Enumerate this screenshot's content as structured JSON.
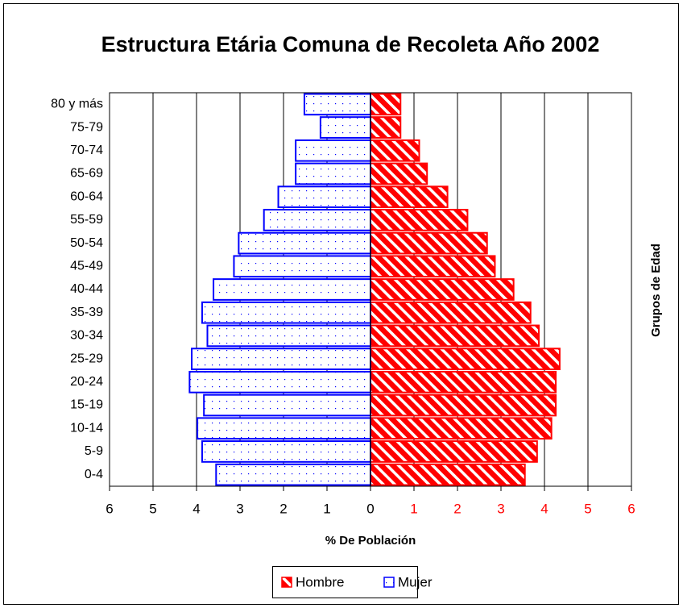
{
  "chart_data": {
    "type": "pyramid",
    "title": "Estructura Etária Comuna de Recoleta Año 2002",
    "xlabel": "% De Población",
    "ylabel": "Grupos de Edad",
    "categories": [
      "0-4",
      "5-9",
      "10-14",
      "15-19",
      "20-24",
      "25-29",
      "30-34",
      "35-39",
      "40-44",
      "45-49",
      "50-54",
      "55-59",
      "60-64",
      "65-69",
      "70-74",
      "75-79",
      "80 y más"
    ],
    "series": [
      {
        "name": "Hombre",
        "color": "#ff0000",
        "values": [
          3.55,
          3.83,
          4.16,
          4.26,
          4.26,
          4.35,
          3.87,
          3.68,
          3.29,
          2.86,
          2.68,
          2.23,
          1.77,
          1.3,
          1.12,
          0.69,
          0.69
        ]
      },
      {
        "name": "Mujer",
        "color": "#0000ff",
        "values": [
          -3.55,
          -3.87,
          -3.98,
          -3.83,
          -4.16,
          -4.11,
          -3.75,
          -3.87,
          -3.61,
          -3.14,
          -3.03,
          -2.45,
          -2.12,
          -1.72,
          -1.72,
          -1.15,
          -1.52
        ]
      }
    ],
    "xlim": [
      -6,
      6
    ],
    "xticks": [
      {
        "value": -6,
        "label": "6"
      },
      {
        "value": -5,
        "label": "5"
      },
      {
        "value": -4,
        "label": "4"
      },
      {
        "value": -3,
        "label": "3"
      },
      {
        "value": -2,
        "label": "2"
      },
      {
        "value": -1,
        "label": "1"
      },
      0,
      1,
      2,
      3,
      4,
      5,
      6
    ],
    "grid": true,
    "legend": "bottom"
  }
}
